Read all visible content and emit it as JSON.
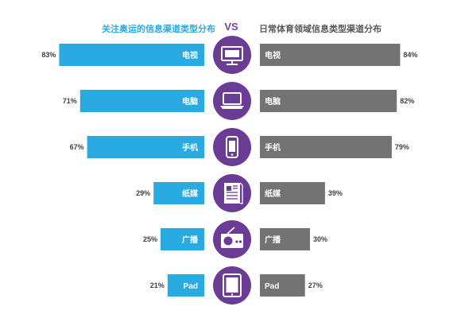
{
  "titles": {
    "left": "关注奥运的信息渠道类型分布",
    "vs": "VS",
    "right": "日常体育领域信息类型渠道分布"
  },
  "colors": {
    "left_bar": "#29abe2",
    "right_bar": "#737373",
    "icon_circle": "#6b3c93",
    "value_text": "#404040"
  },
  "chart_data": {
    "type": "bar",
    "categories": [
      "电视",
      "电脑",
      "手机",
      "纸媒",
      "广播",
      "Pad"
    ],
    "icons": [
      "tv-icon",
      "laptop-icon",
      "phone-icon",
      "newspaper-icon",
      "radio-icon",
      "tablet-icon"
    ],
    "series": [
      {
        "name": "关注奥运的信息渠道类型分布",
        "values": [
          83,
          71,
          67,
          29,
          25,
          21
        ]
      },
      {
        "name": "日常体育领域信息类型渠道分布",
        "values": [
          84,
          82,
          79,
          39,
          30,
          27
        ]
      }
    ],
    "unit": "%"
  }
}
